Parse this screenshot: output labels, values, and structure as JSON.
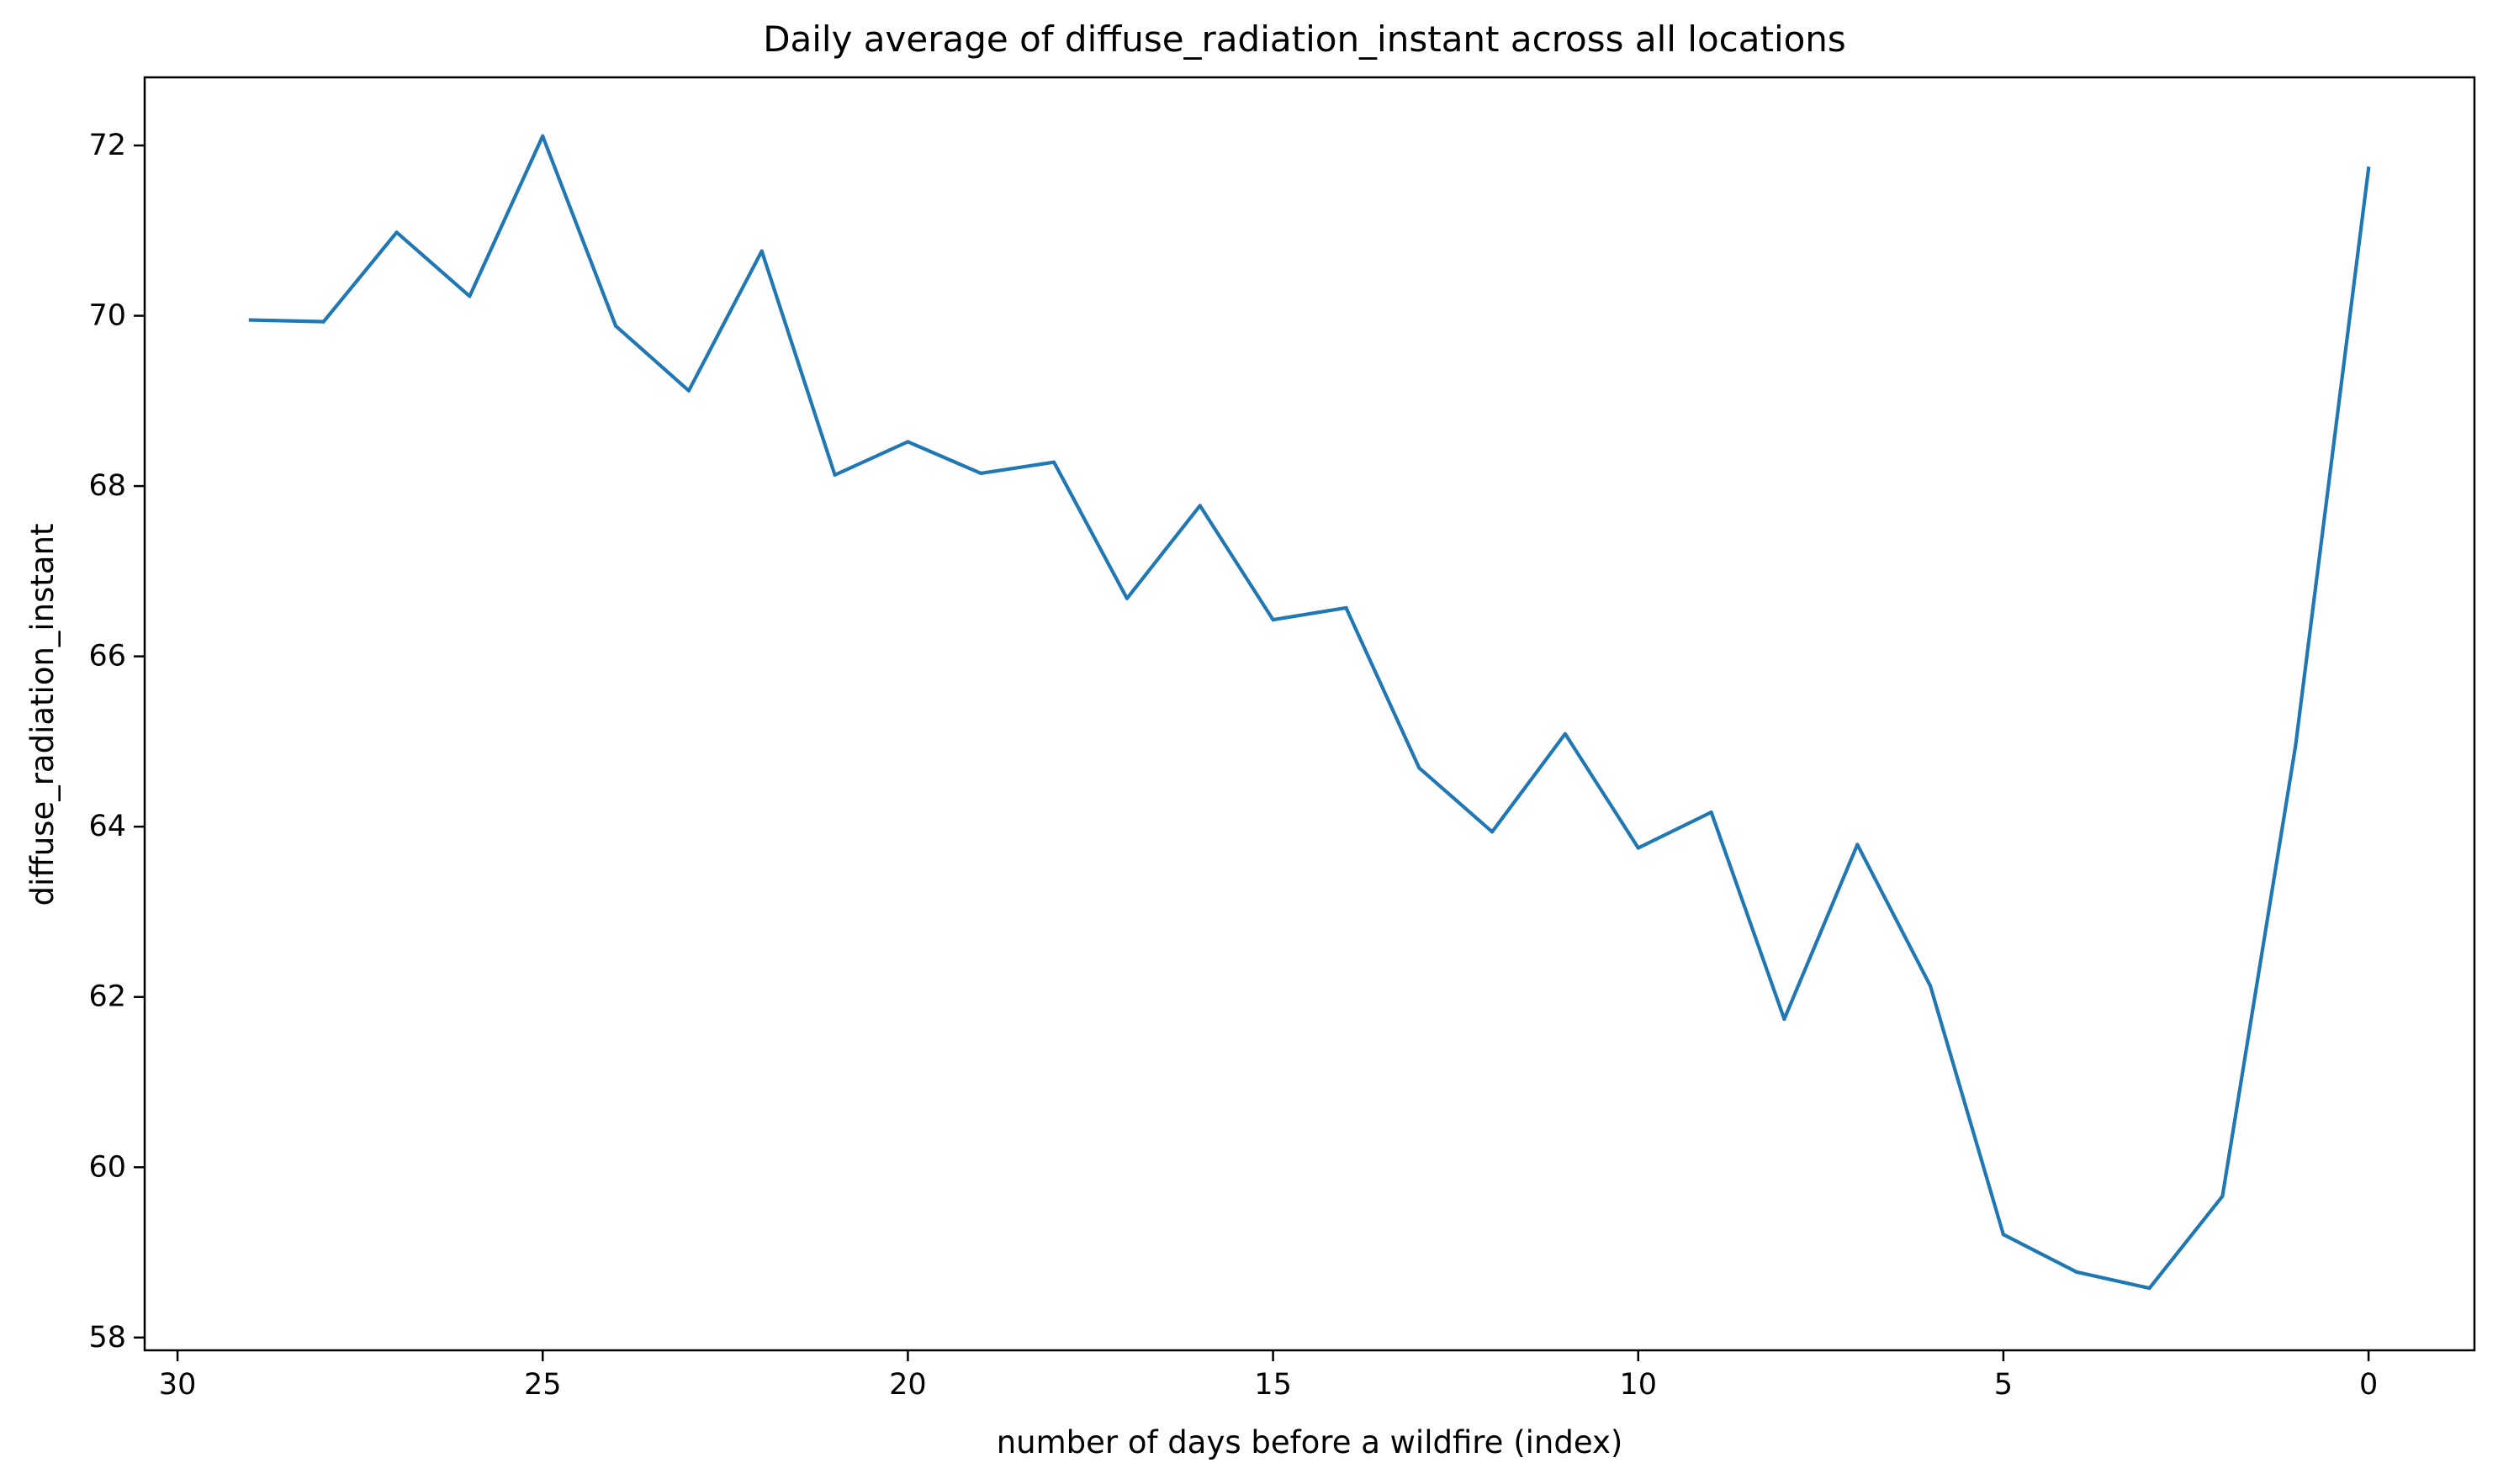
{
  "chart_data": {
    "type": "line",
    "title": "Daily average of diffuse_radiation_instant across all locations",
    "xlabel": "number of days before a wildfire (index)",
    "ylabel": "diffuse_radiation_instant",
    "x_inverted": true,
    "xlim": [
      30.45,
      -1.45
    ],
    "ylim": [
      57.85,
      72.8
    ],
    "xticks": [
      30,
      25,
      20,
      15,
      10,
      5,
      0
    ],
    "yticks": [
      58,
      60,
      62,
      64,
      66,
      68,
      70,
      72
    ],
    "grid": false,
    "legend": "none",
    "series": [
      {
        "color": "#1f77b4",
        "x": [
          29,
          28,
          27,
          26,
          25,
          24,
          23,
          22,
          21,
          20,
          19,
          18,
          17,
          16,
          15,
          14,
          13,
          12,
          11,
          10,
          9,
          8,
          7,
          6,
          5,
          4,
          3,
          2,
          1,
          0
        ],
        "y": [
          69.95,
          69.93,
          70.98,
          70.23,
          72.11,
          69.88,
          69.12,
          70.76,
          68.13,
          68.52,
          68.15,
          68.28,
          66.68,
          67.77,
          66.43,
          66.57,
          64.69,
          63.94,
          65.09,
          63.75,
          64.17,
          61.74,
          63.79,
          62.13,
          59.21,
          58.77,
          58.58,
          59.66,
          64.95,
          71.73
        ]
      }
    ]
  }
}
